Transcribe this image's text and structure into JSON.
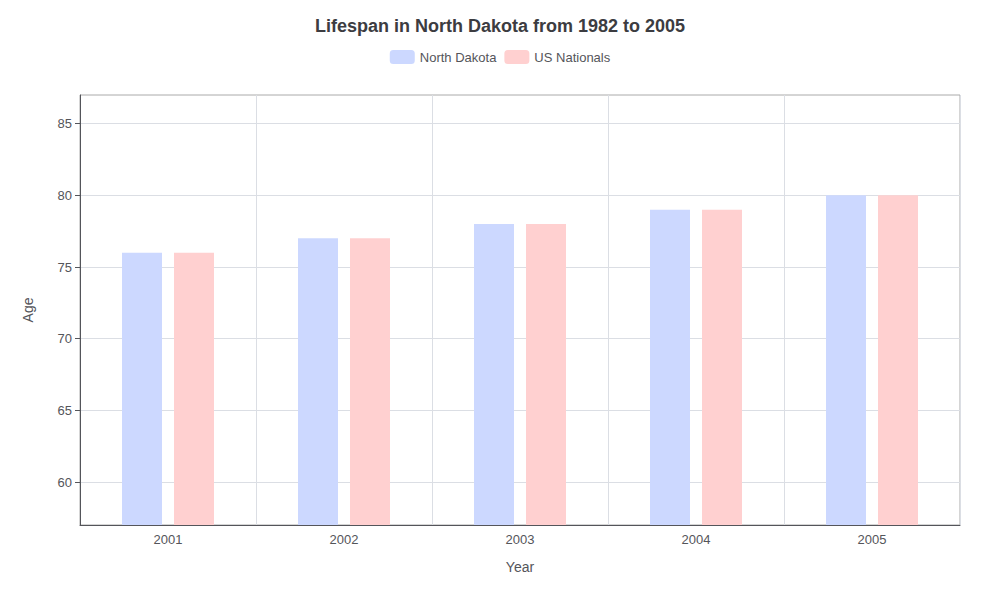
{
  "chart_data": {
    "type": "bar",
    "title": "Lifespan in North Dakota from 1982 to 2005",
    "x_label": "Year",
    "y_label": "Age",
    "categories": [
      "2001",
      "2002",
      "2003",
      "2004",
      "2005"
    ],
    "series": [
      {
        "name": "North Dakota",
        "color": "#ccd8ff",
        "values": [
          76.0,
          77.0,
          78.0,
          79.0,
          80.0
        ]
      },
      {
        "name": "US Nationals",
        "color": "#ffd0d0",
        "values": [
          76.0,
          77.0,
          78.0,
          79.0,
          80.0
        ]
      }
    ],
    "ylim": [
      57,
      87
    ],
    "yticks": [
      60,
      65,
      70,
      75,
      80,
      85
    ],
    "grid": true,
    "legend": "top"
  }
}
